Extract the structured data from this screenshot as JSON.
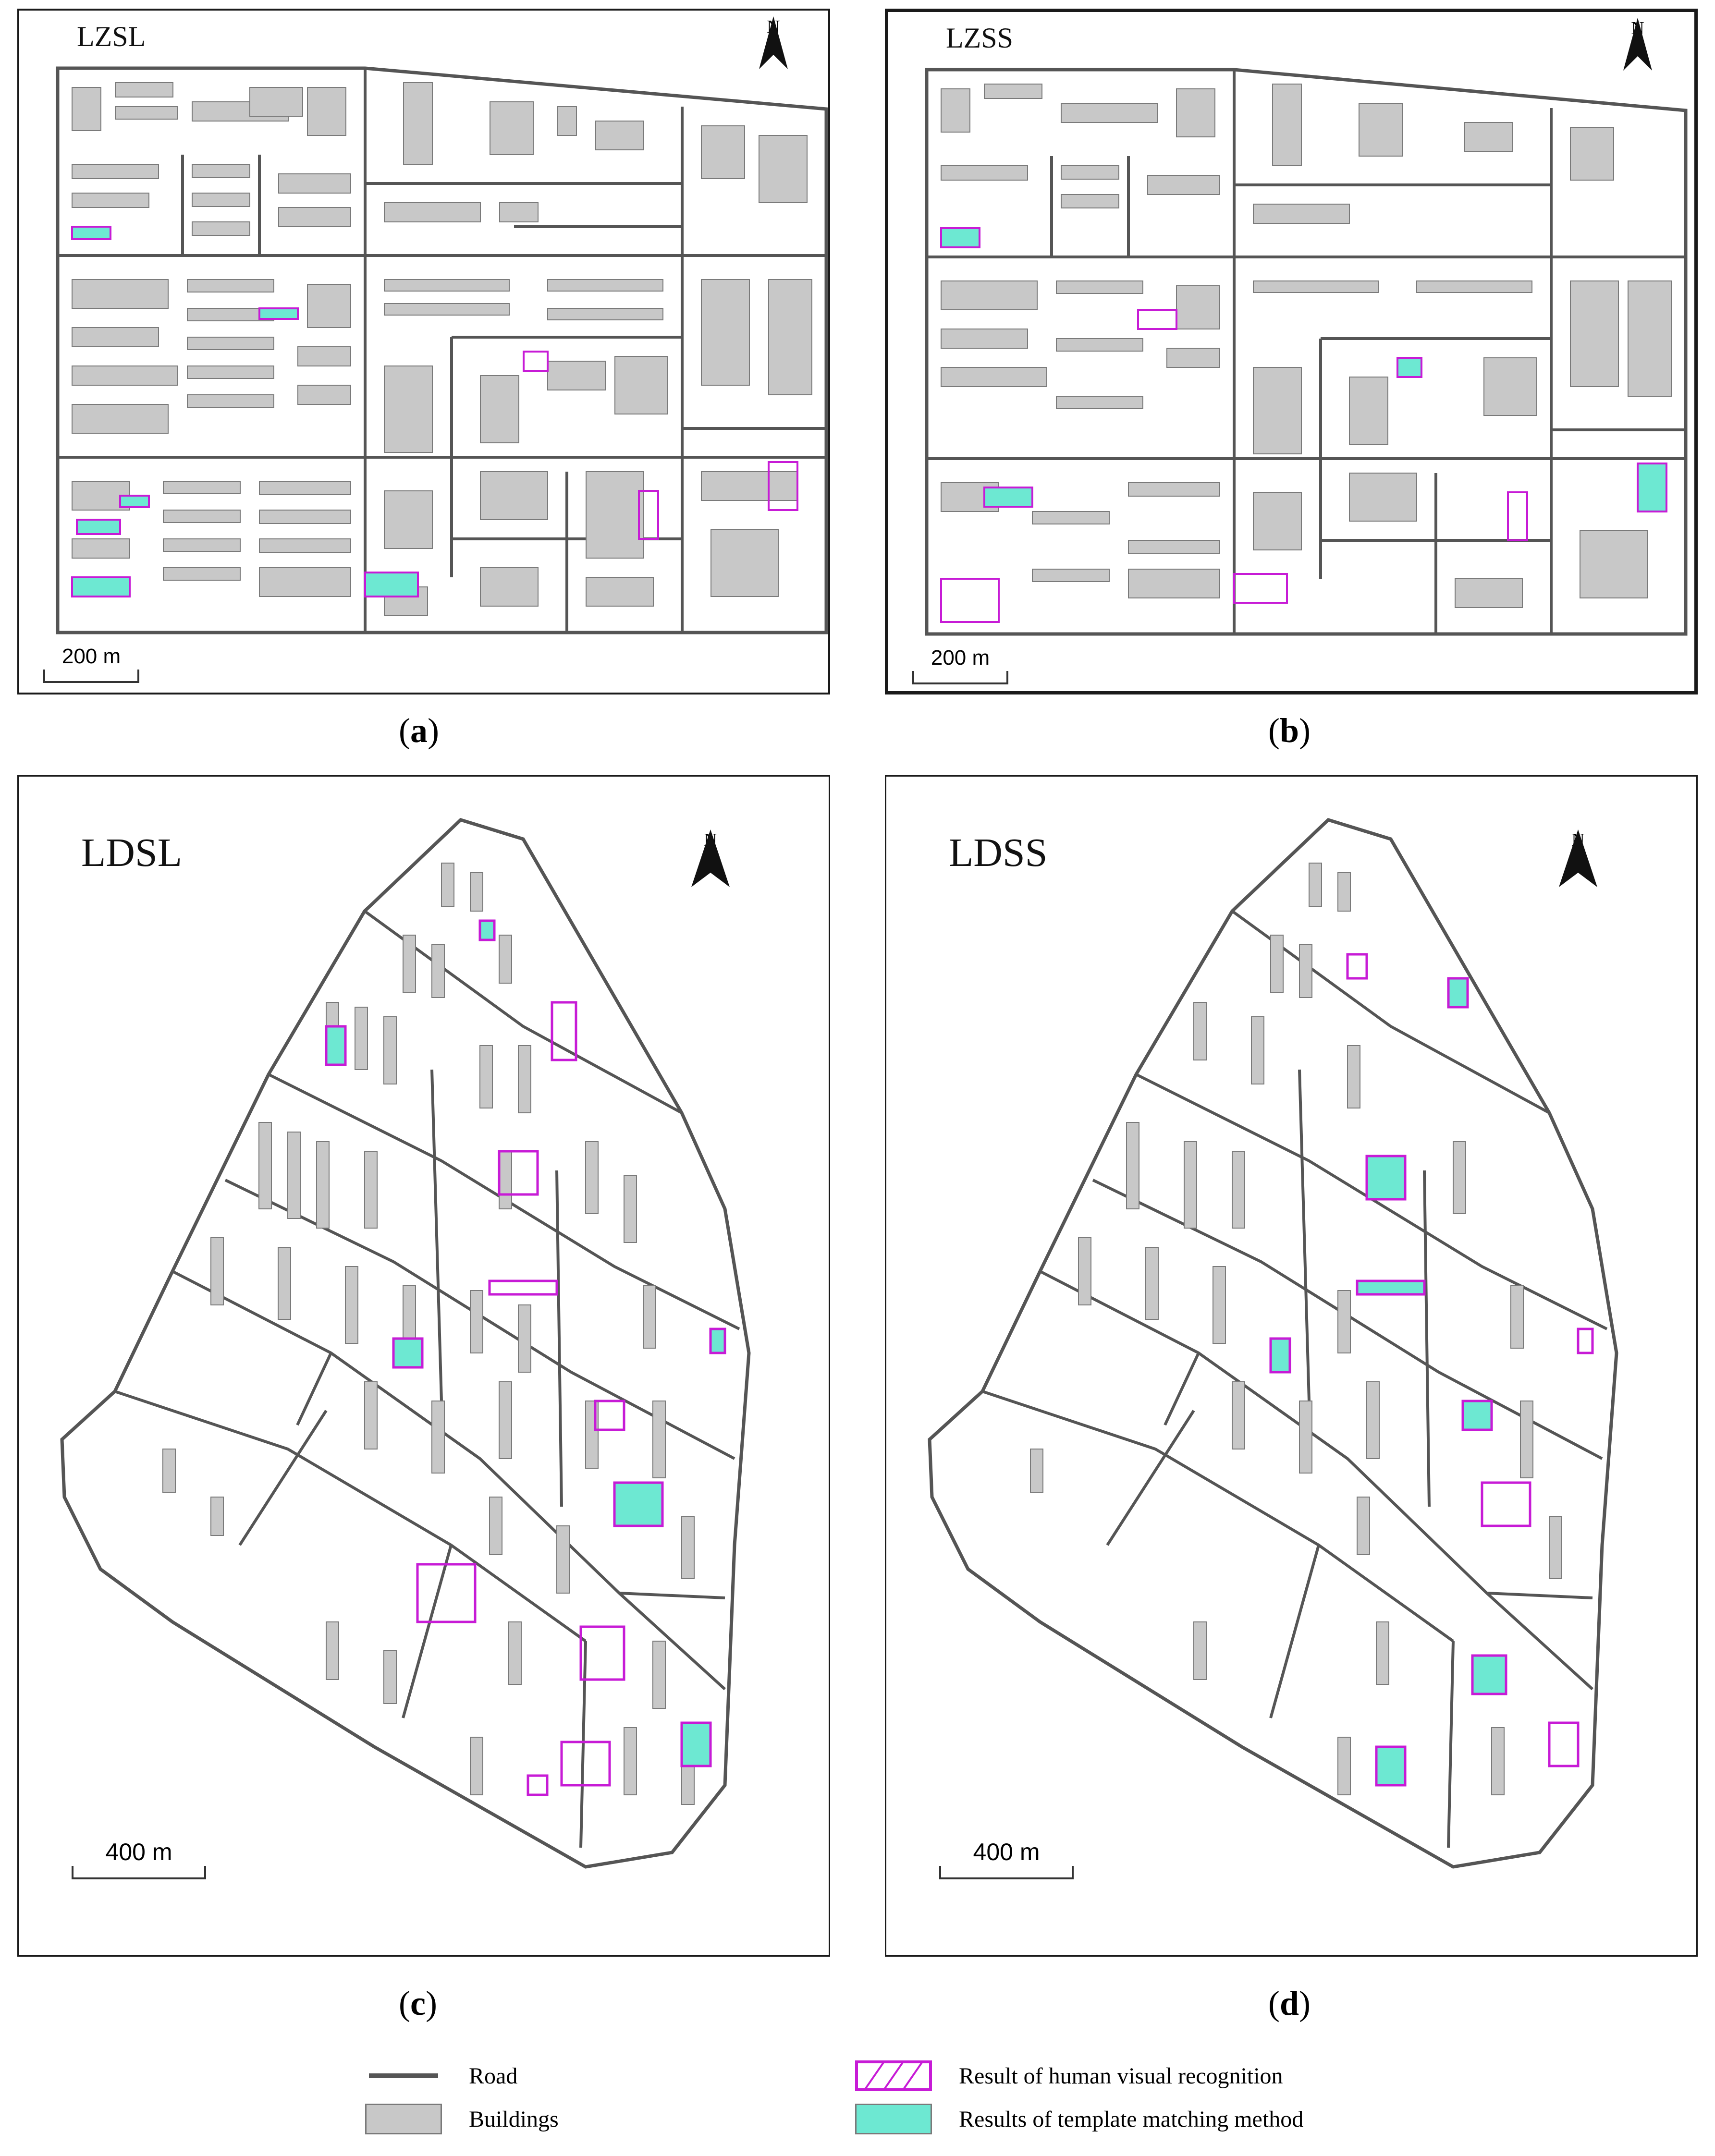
{
  "panels": [
    {
      "title": "LZSL",
      "scale": "200 m",
      "north": "N",
      "caption_letter": "a"
    },
    {
      "title": "LZSS",
      "scale": "200 m",
      "north": "N",
      "caption_letter": "b"
    },
    {
      "title": "LDSL",
      "scale": "400 m",
      "north": "N",
      "caption_letter": "c"
    },
    {
      "title": "LDSS",
      "scale": "400 m",
      "north": "N",
      "caption_letter": "d"
    }
  ],
  "legend": {
    "road": "Road",
    "buildings": "Buildings",
    "human": "Result of human visual recognition",
    "template": "Results of template matching method"
  },
  "colors": {
    "road": "#555555",
    "building_fill": "#c8c8c8",
    "building_stroke": "#7a7a7a",
    "human": "#c71bd6",
    "template": "#6de8d2",
    "panel_border": "#1a1a1a"
  }
}
